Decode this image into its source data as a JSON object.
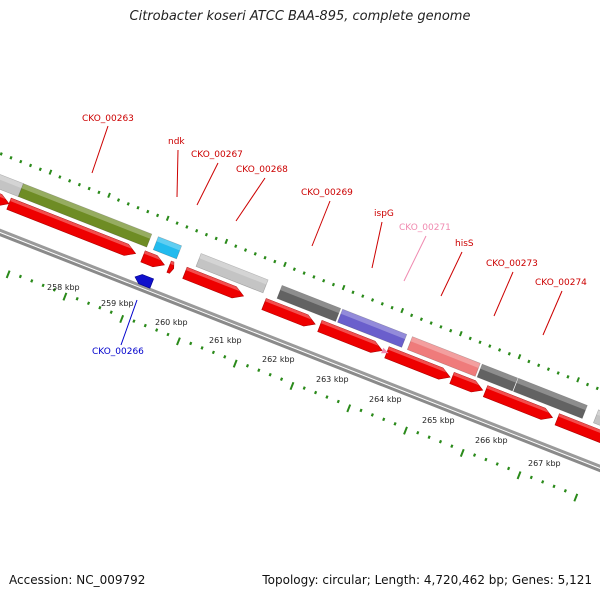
{
  "title": "Citrobacter koseri ATCC BAA-895, complete genome",
  "footer": {
    "accession": "Accession: NC_009792",
    "summary": "Topology: circular; Length: 4,720,462 bp; Genes: 5,121"
  },
  "colors": {
    "forward_cds": "#ee0000",
    "reverse_cds": "#1010cc",
    "olive": "#6e8c24",
    "cyan": "#22bbee",
    "light_gray": "#c4c4c4",
    "dark_gray": "#626262",
    "purple": "#6a5fcc",
    "salmon": "#ef7b7b",
    "tick_green": "#2a8a1a",
    "label_red": "#cc0000",
    "label_pink": "#f08ab0",
    "label_blue": "#0000cc"
  },
  "ruler": {
    "ticks": [
      {
        "label": "258 kbp"
      },
      {
        "label": "259 kbp"
      },
      {
        "label": "260 kbp"
      },
      {
        "label": "261 kbp"
      },
      {
        "label": "262 kbp"
      },
      {
        "label": "263 kbp"
      },
      {
        "label": "264 kbp"
      },
      {
        "label": "265 kbp"
      },
      {
        "label": "266 kbp"
      },
      {
        "label": "267 kbp"
      }
    ]
  },
  "gene_labels": [
    {
      "name": "CKO_00263",
      "color": "red"
    },
    {
      "name": "ndk",
      "color": "red"
    },
    {
      "name": "CKO_00267",
      "color": "red"
    },
    {
      "name": "CKO_00268",
      "color": "red"
    },
    {
      "name": "CKO_00269",
      "color": "red"
    },
    {
      "name": "ispG",
      "color": "red"
    },
    {
      "name": "CKO_00271",
      "color": "pink"
    },
    {
      "name": "hisS",
      "color": "red"
    },
    {
      "name": "CKO_00273",
      "color": "red"
    },
    {
      "name": "CKO_00274",
      "color": "red"
    },
    {
      "name": "CKO_00266",
      "color": "blue"
    }
  ]
}
